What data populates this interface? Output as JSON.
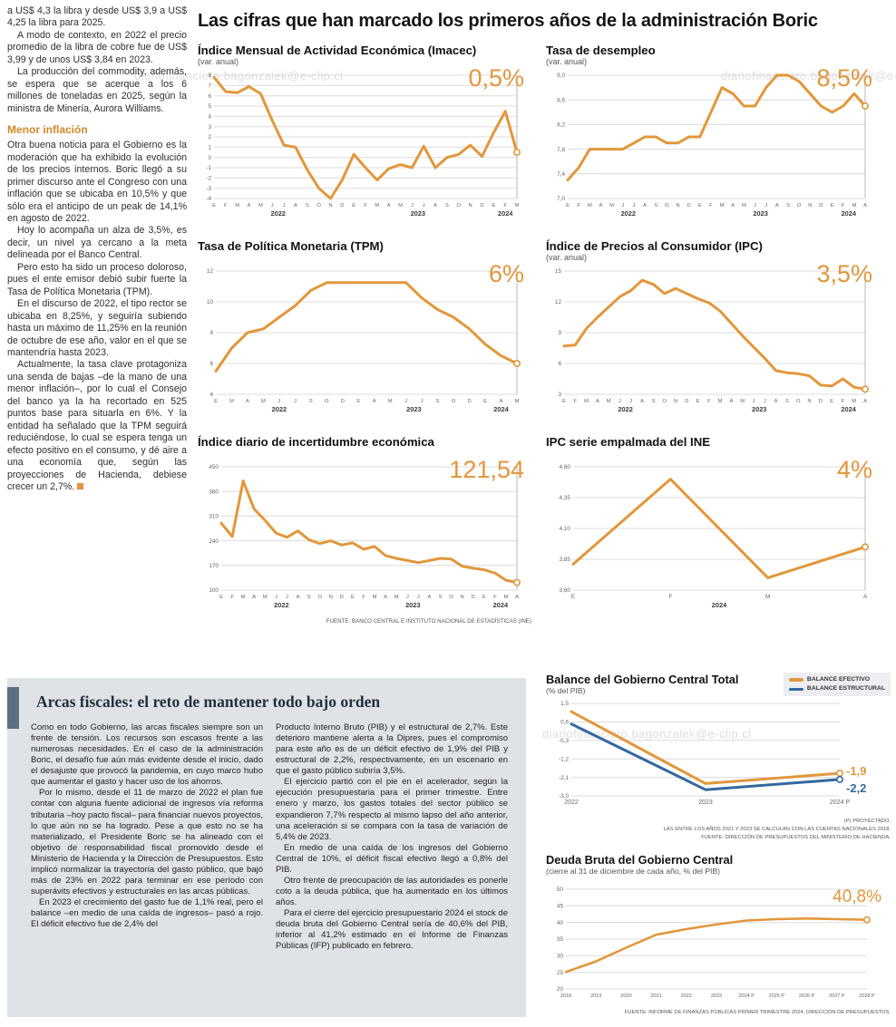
{
  "page": {
    "main_title": "Las cifras que han marcado los primeros años de la administración Boric",
    "watermark": "diariofinanciero.bagonzalek@e-clip.cl"
  },
  "colors": {
    "orange": "#E2973B",
    "blue": "#33699E",
    "heading_orange": "#D08B28",
    "panel_bg": "#DFE2E7",
    "accent_bar": "#5C7082"
  },
  "left_article": {
    "paragraphs_top": [
      "a US$ 4,3 la libra y desde US$ 3,9 a US$ 4,25 la libra para 2025.",
      "A modo de contexto, en 2022 el precio promedio de la libra de cobre fue de US$ 3,99 y de unos US$ 3,84 en 2023.",
      "La producción del commodity, además, se espera que se acerque a los 6 millones de toneladas en 2025, según la ministra de Minería, Aurora Williams."
    ],
    "heading": "Menor inflación",
    "paragraphs_bottom": [
      "Otra buena noticia para el Gobierno es la moderación que ha exhibido la evolución de los precios internos. Boric llegó a su primer discurso ante el Congreso con una inflación que se ubicaba en 10,5% y que sólo era el anticipo de un peak de 14,1% en agosto de 2022.",
      "Hoy lo acompaña un alza de 3,5%, es decir, un nivel ya cercano a la meta delineada por el Banco Central.",
      "Pero esto ha sido un proceso doloroso, pues el ente emisor debió subir fuerte la Tasa de Política Monetaria (TPM).",
      "En el discurso de 2022, el tipo rector se ubicaba en 8,25%, y seguiría subiendo hasta un máximo de 11,25% en la reunión de octubre de ese año, valor en el que se mantendría hasta 2023.",
      "Actualmente, la tasa clave protagoniza una senda de bajas –de la mano de una menor inflación–, por lo cual el Consejo del banco ya la ha recortado en 525 puntos base para situarla en 6%. Y la entidad ha señalado que la TPM seguirá reduciéndose, lo cual se espera tenga un efecto positivo en el consumo, y dé aire a una economía que, según las proyecciones de Hacienda, debiese crecer un 2,7%."
    ]
  },
  "chart_data": [
    {
      "type": "line",
      "title": "Índice Mensual de Actividad Económica (Imacec)",
      "subtitle": "(var. anual)",
      "end_label": "0,5%",
      "y_min": -4,
      "y_max": 8,
      "y_ticks": [
        {
          "v": 8,
          "label": "8"
        },
        {
          "v": 7,
          "label": "7"
        },
        {
          "v": 6,
          "label": "6"
        },
        {
          "v": 5,
          "label": "5"
        },
        {
          "v": 4,
          "label": "4"
        },
        {
          "v": 3,
          "label": "3"
        },
        {
          "v": 2,
          "label": "2"
        },
        {
          "v": 1,
          "label": "1"
        },
        {
          "v": 0,
          "label": "0"
        },
        {
          "v": -1,
          "label": "-1"
        },
        {
          "v": -2,
          "label": "-2"
        },
        {
          "v": -3,
          "label": "-3"
        },
        {
          "v": -4,
          "label": "-4"
        }
      ],
      "x_labels": [
        "E",
        "F",
        "M",
        "A",
        "M",
        "J",
        "J",
        "A",
        "S",
        "O",
        "N",
        "D",
        "E",
        "F",
        "M",
        "A",
        "M",
        "J",
        "J",
        "A",
        "S",
        "O",
        "N",
        "D",
        "E",
        "F",
        "M"
      ],
      "years": [
        {
          "label": "2022",
          "from": 0,
          "to": 11
        },
        {
          "label": "2023",
          "from": 12,
          "to": 23
        },
        {
          "label": "2024",
          "from": 24,
          "to": 26
        }
      ],
      "values": [
        7.8,
        6.4,
        6.3,
        6.9,
        6.2,
        3.6,
        1.2,
        1.0,
        -1.2,
        -3.0,
        -4.0,
        -2.2,
        0.3,
        -1.0,
        -2.2,
        -1.1,
        -0.7,
        -1.0,
        1.1,
        -1.0,
        0.0,
        0.3,
        1.2,
        0.1,
        2.4,
        4.5,
        0.5
      ],
      "end_line": true
    },
    {
      "type": "line",
      "title": "Tasa de desempleo",
      "subtitle": "(var. anual)",
      "end_label": "8,5%",
      "y_min": 7.0,
      "y_max": 9.0,
      "y_ticks": [
        {
          "v": 9.0,
          "label": "9,0"
        },
        {
          "v": 8.6,
          "label": "8,6"
        },
        {
          "v": 8.2,
          "label": "8,2"
        },
        {
          "v": 7.8,
          "label": "7,8"
        },
        {
          "v": 7.4,
          "label": "7,4"
        },
        {
          "v": 7.0,
          "label": "7,0"
        }
      ],
      "x_labels": [
        "E",
        "F",
        "M",
        "A",
        "M",
        "J",
        "J",
        "A",
        "S",
        "O",
        "N",
        "D",
        "E",
        "F",
        "M",
        "A",
        "M",
        "J",
        "J",
        "A",
        "S",
        "O",
        "N",
        "D",
        "E",
        "F",
        "M",
        "A"
      ],
      "years": [
        {
          "label": "2022",
          "from": 0,
          "to": 11
        },
        {
          "label": "2023",
          "from": 12,
          "to": 23
        },
        {
          "label": "2024",
          "from": 24,
          "to": 27
        }
      ],
      "values": [
        7.3,
        7.5,
        7.8,
        7.8,
        7.8,
        7.8,
        7.9,
        8.0,
        8.0,
        7.9,
        7.9,
        8.0,
        8.0,
        8.4,
        8.8,
        8.7,
        8.5,
        8.5,
        8.8,
        9.0,
        9.0,
        8.9,
        8.7,
        8.5,
        8.4,
        8.5,
        8.7,
        8.5
      ],
      "end_line": true
    },
    {
      "type": "line",
      "title": "Tasa de Política Monetaria (TPM)",
      "subtitle": "",
      "end_label": "6%",
      "y_min": 4,
      "y_max": 12,
      "y_ticks": [
        {
          "v": 12,
          "label": "12"
        },
        {
          "v": 10,
          "label": "10"
        },
        {
          "v": 8,
          "label": "8"
        },
        {
          "v": 6,
          "label": "6"
        },
        {
          "v": 4,
          "label": "4"
        }
      ],
      "x_labels": [
        "E",
        "M",
        "A",
        "M",
        "J",
        "J",
        "S",
        "O",
        "D",
        "E",
        "A",
        "M",
        "J",
        "J",
        "S",
        "O",
        "D",
        "E",
        "A",
        "M"
      ],
      "years": [
        {
          "label": "2022",
          "from": 0,
          "to": 8
        },
        {
          "label": "2023",
          "from": 9,
          "to": 16
        },
        {
          "label": "2024",
          "from": 17,
          "to": 19
        }
      ],
      "values": [
        5.5,
        7.0,
        8.0,
        8.25,
        9.0,
        9.75,
        10.75,
        11.25,
        11.25,
        11.25,
        11.25,
        11.25,
        11.25,
        10.25,
        9.5,
        9.0,
        8.25,
        7.25,
        6.5,
        6.0
      ],
      "end_line": true
    },
    {
      "type": "line",
      "title": "Índice de Precios al Consumidor (IPC)",
      "subtitle": "(var. anual)",
      "end_label": "3,5%",
      "y_min": 3,
      "y_max": 15,
      "y_ticks": [
        {
          "v": 15,
          "label": "15"
        },
        {
          "v": 12,
          "label": "12"
        },
        {
          "v": 9,
          "label": "9"
        },
        {
          "v": 6,
          "label": "6"
        },
        {
          "v": 3,
          "label": "3"
        }
      ],
      "x_labels": [
        "E",
        "F",
        "M",
        "A",
        "M",
        "J",
        "J",
        "A",
        "S",
        "O",
        "N",
        "D",
        "E",
        "F",
        "M",
        "A",
        "M",
        "J",
        "J",
        "A",
        "S",
        "O",
        "N",
        "D",
        "E",
        "F",
        "M",
        "A"
      ],
      "years": [
        {
          "label": "2022",
          "from": 0,
          "to": 11
        },
        {
          "label": "2023",
          "from": 12,
          "to": 23
        },
        {
          "label": "2024",
          "from": 24,
          "to": 27
        }
      ],
      "values": [
        7.7,
        7.8,
        9.4,
        10.5,
        11.5,
        12.5,
        13.1,
        14.1,
        13.7,
        12.8,
        13.3,
        12.8,
        12.3,
        11.9,
        11.1,
        9.9,
        8.7,
        7.6,
        6.5,
        5.3,
        5.1,
        5.0,
        4.8,
        3.9,
        3.8,
        4.5,
        3.7,
        3.5
      ],
      "end_line": true
    },
    {
      "type": "line",
      "title": "Índice diario de incertidumbre económica",
      "subtitle": "",
      "end_label": "121,54",
      "y_min": 100,
      "y_max": 450,
      "y_ticks": [
        {
          "v": 450,
          "label": "450"
        },
        {
          "v": 380,
          "label": "380"
        },
        {
          "v": 310,
          "label": "310"
        },
        {
          "v": 240,
          "label": "240"
        },
        {
          "v": 170,
          "label": "170"
        },
        {
          "v": 100,
          "label": "100"
        }
      ],
      "x_labels": [
        "E",
        "F",
        "M",
        "A",
        "M",
        "J",
        "J",
        "A",
        "S",
        "O",
        "N",
        "D",
        "E",
        "F",
        "M",
        "A",
        "M",
        "J",
        "J",
        "A",
        "S",
        "O",
        "N",
        "D",
        "E",
        "F",
        "M",
        "A"
      ],
      "years": [
        {
          "label": "2022",
          "from": 0,
          "to": 11
        },
        {
          "label": "2023",
          "from": 12,
          "to": 23
        },
        {
          "label": "2024",
          "from": 24,
          "to": 27
        }
      ],
      "values": [
        290,
        252,
        410,
        330,
        298,
        262,
        250,
        268,
        243,
        232,
        240,
        228,
        234,
        216,
        224,
        198,
        190,
        184,
        178,
        184,
        190,
        188,
        168,
        162,
        158,
        148,
        128,
        121.54
      ],
      "end_line": true,
      "source": "FUENTE: BANCO CENTRAL E INSTITUTO NACIONAL DE ESTADÍSTICAS (INE)"
    },
    {
      "type": "line",
      "title": "IPC serie empalmada del INE",
      "subtitle": "",
      "end_label": "4%",
      "y_min": 3.6,
      "y_max": 4.6,
      "y_ticks": [
        {
          "v": 4.6,
          "label": "4,60"
        },
        {
          "v": 4.35,
          "label": "4,35"
        },
        {
          "v": 4.1,
          "label": "4,10"
        },
        {
          "v": 3.85,
          "label": "3,85"
        },
        {
          "v": 3.6,
          "label": "3,60"
        }
      ],
      "x_labels": [
        "E",
        "F",
        "M",
        "A"
      ],
      "years": [
        {
          "label": "2024",
          "from": 0,
          "to": 3
        }
      ],
      "values": [
        3.81,
        4.5,
        3.7,
        3.95
      ],
      "end_line": true
    },
    {
      "type": "line",
      "title": "Balance del Gobierno Central Total",
      "subtitle": "(% del PIB)",
      "y_min": -3.0,
      "y_max": 1.5,
      "y_ticks": [
        {
          "v": 1.5,
          "label": "1,5"
        },
        {
          "v": 0.6,
          "label": "0,6"
        },
        {
          "v": -0.3,
          "label": "-0,3"
        },
        {
          "v": -1.2,
          "label": "-1,2"
        },
        {
          "v": -2.1,
          "label": "-2,1"
        },
        {
          "v": -3.0,
          "label": "-3,0"
        }
      ],
      "x_labels": [
        "2022",
        "2023",
        "2024 P"
      ],
      "series": [
        {
          "name": "BALANCE EFECTIVO",
          "color": "#E2973B",
          "values": [
            1.1,
            -2.4,
            -1.9
          ],
          "end_label": "-1,9"
        },
        {
          "name": "BALANCE ESTRUCTURAL",
          "color": "#33699E",
          "values": [
            0.5,
            -2.7,
            -2.2
          ],
          "end_label": "-2,2"
        }
      ],
      "end_line": false,
      "notes": [
        "(P) PROYECTADO.",
        "LAS ENTRE LOS AÑOS 2021 Y 2023 SE CALCULAN  CON LAS CUENTAS NACIONALES 2018.",
        "FUENTE: DIRECCIÓN DE PRESUPUESTOS DEL MINISTERIO DE HACIENDA."
      ]
    },
    {
      "type": "line",
      "title": "Deuda Bruta del Gobierno Central",
      "subtitle": "(cierre al 31 de diciembre de cada año, % del PIB)",
      "end_label": "40,8%",
      "y_min": 20,
      "y_max": 50,
      "y_ticks": [
        {
          "v": 50,
          "label": "50"
        },
        {
          "v": 45,
          "label": "45"
        },
        {
          "v": 40,
          "label": "40"
        },
        {
          "v": 35,
          "label": "35"
        },
        {
          "v": 30,
          "label": "30"
        },
        {
          "v": 25,
          "label": "25"
        },
        {
          "v": 20,
          "label": "20"
        }
      ],
      "x_labels": [
        "2018",
        "2019",
        "2020",
        "2021",
        "2022",
        "2023",
        "2024 P",
        "2025 P",
        "2026 P",
        "2027 P",
        "2028 P"
      ],
      "values": [
        25.1,
        28.3,
        32.4,
        36.3,
        38.0,
        39.4,
        40.6,
        41.0,
        41.2,
        41.0,
        40.8
      ],
      "end_line": false,
      "source": "FUENTE: INFORME DE FINANZAS PÚBLICAS PRIMER TRIMESTRE 2024, DIRECCIÓN DE PRESUPUESTOS."
    }
  ],
  "fiscal_section": {
    "title": "Arcas fiscales: el reto de mantener todo bajo orden",
    "col1_paragraphs": [
      "Como en todo Gobierno, las arcas fiscales siempre son un frente de tensión. Los recursos son escasos frente a las numerosas necesidades. En el caso de la administración Boric, el desafío fue aún más evidente desde el inicio, dado el desajuste que provocó la pandemia, en cuyo marco hubo que aumentar el gasto y hacer uso de los ahorros.",
      "Por lo mismo, desde el 11 de marzo de 2022 el plan fue contar con alguna fuente adicional de ingresos vía reforma tributaria –hoy pacto fiscal– para financiar nuevos proyectos, lo que aún no se ha logrado. Pese a que esto no se ha materializado, el Presidente Boric se ha alineado con el objetivo de responsabilidad fiscal promovido desde el Ministerio de Hacienda y la Dirección de Presupuestos. Esto implicó normalizar la trayectoria del gasto público, que bajó más de 23% en 2022 para terminar en ese período con superávits efectivos y estructurales en las arcas públicas.",
      "En 2023 el crecimiento del gasto fue de 1,1% real, pero el balance –en medio de una caída de ingresos– pasó a rojo. El déficit efectivo fue de 2,4% del"
    ],
    "col2_paragraphs": [
      "Producto Interno Bruto (PIB) y el estructural de 2,7%. Este deterioro mantiene alerta a la Dipres, pues el compromiso para este año es de un déficit efectivo de 1,9% del PIB y estructural de 2,2%, respectivamente, en un escenario en que el gasto público subiría 3,5%.",
      "El ejercicio partió con el pie en el acelerador, según la ejecución presupuestaria para el primer trimestre. Entre enero y marzo, los gastos totales del sector público se expandieron 7,7% respecto al mismo lapso del año anterior, una aceleración si se compara con la tasa de variación de 5,4% de 2023.",
      "En medio de una caída de los ingresos del Gobierno Central de 10%, el déficit fiscal efectivo llegó a 0,8% del PIB.",
      "Otro frente de preocupación de las autoridades es ponerle coto a la deuda pública, que ha aumentado en los últimos años.",
      "Para el cierre del ejercicio presupuestario 2024 el stock de deuda bruta del Gobierno Central sería de 40,6% del PIB, inferior al 41,2% estimado en el Informe de Finanzas Públicas (IFP) publicado en febrero."
    ]
  }
}
